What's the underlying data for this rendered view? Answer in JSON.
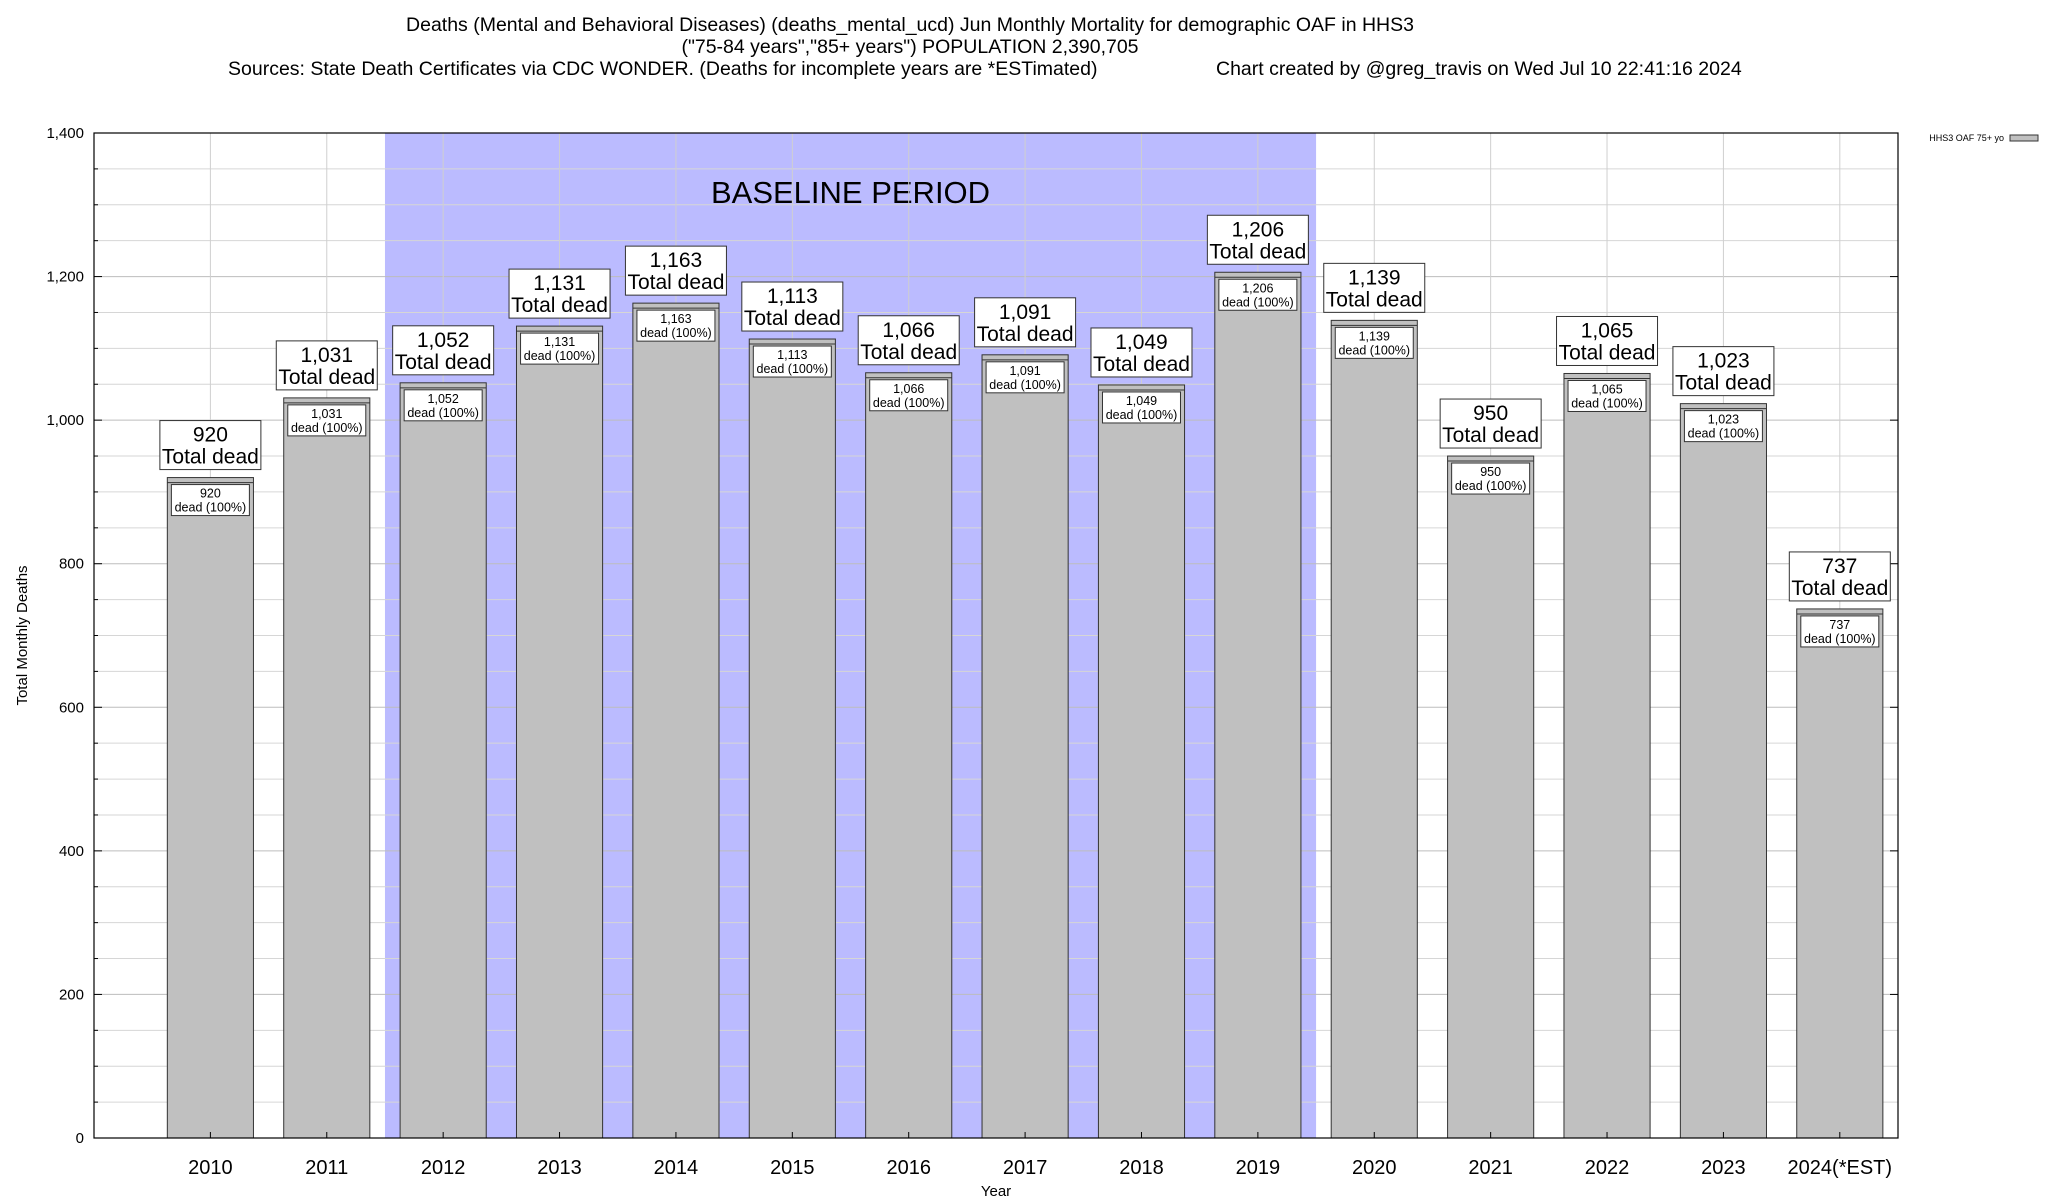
{
  "title": {
    "line1": "Deaths (Mental and Behavioral Diseases) (deaths_mental_ucd) Jun Monthly Mortality for demographic OAF in HHS3",
    "line2": "(\"75-84 years\",\"85+ years\") POPULATION 2,390,705",
    "sources": "Sources: State Death Certificates via CDC WONDER. (Deaths for incomplete years are *ESTimated)",
    "credit": "Chart created by @greg_travis on Wed Jul 10 22:41:16 2024"
  },
  "chart_data": {
    "type": "bar",
    "categories": [
      "2010",
      "2011",
      "2012",
      "2013",
      "2014",
      "2015",
      "2016",
      "2017",
      "2018",
      "2019",
      "2020",
      "2021",
      "2022",
      "2023",
      "2024(*EST)"
    ],
    "series": [
      {
        "name": "HHS3 OAF 75+ yo",
        "values": [
          920,
          1031,
          1052,
          1131,
          1163,
          1113,
          1066,
          1091,
          1049,
          1206,
          1139,
          950,
          1065,
          1023,
          737
        ],
        "color": "#c0c0c0"
      }
    ],
    "value_labels": [
      "920",
      "1,031",
      "1,052",
      "1,131",
      "1,163",
      "1,113",
      "1,066",
      "1,091",
      "1,049",
      "1,206",
      "1,139",
      "950",
      "1,065",
      "1,023",
      "737"
    ],
    "total_label": "Total dead",
    "pct_label": "dead (100%)",
    "xlabel": "Year",
    "ylabel": "Total Monthly Deaths",
    "ylim": [
      0,
      1400
    ],
    "yticks": [
      0,
      200,
      400,
      600,
      800,
      1000,
      1200,
      1400
    ],
    "ytick_labels": [
      "0",
      "200",
      "400",
      "600",
      "800",
      "1,000",
      "1,200",
      "1,400"
    ],
    "baseline": {
      "label": "BASELINE PERIOD",
      "from": "2012",
      "to": "2019",
      "color": "#bbbbff"
    },
    "grid": true,
    "legend_position": "top-right"
  }
}
